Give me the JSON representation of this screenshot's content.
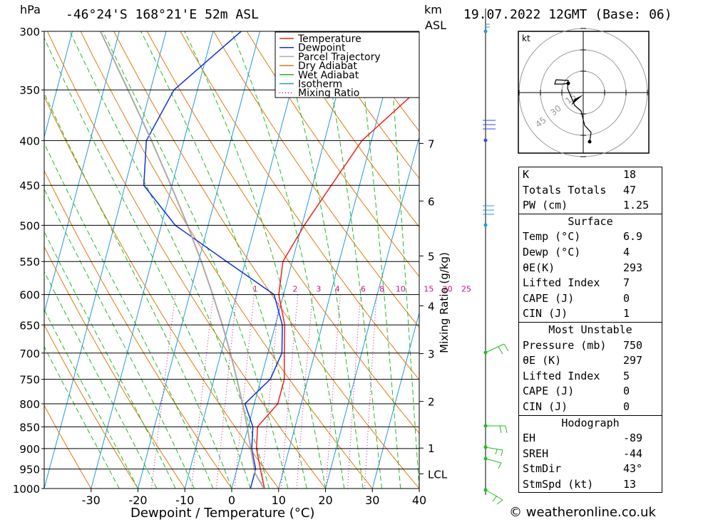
{
  "header": {
    "location": "-46°24'S 168°21'E 52m ASL",
    "datetime": "19.07.2022 12GMT (Base: 06)",
    "pressure_unit": "hPa",
    "height_unit_line1": "km",
    "height_unit_line2": "ASL"
  },
  "footer": {
    "credit": "© weatheronline.co.uk"
  },
  "colors": {
    "temperature": "#ee2222",
    "dewpoint": "#1133dd",
    "parcel": "#aaaaaa",
    "dry_adiabat": "#e07a10",
    "wet_adiabat": "#22bb22",
    "isotherm": "#2299dd",
    "mixing_ratio": "#cc1188",
    "wind_blue": "#3344ff",
    "wind_green": "#22bb22"
  },
  "chart_data": {
    "type": "line",
    "title": "",
    "xlabel": "Dewpoint / Temperature (°C)",
    "ylabel": "hPa",
    "xlim": [
      -40,
      40
    ],
    "ylim": [
      1000,
      300
    ],
    "x_ticks": [
      -30,
      -20,
      -10,
      0,
      10,
      20,
      30,
      40
    ],
    "pressure_levels": [
      300,
      350,
      400,
      450,
      500,
      550,
      600,
      650,
      700,
      750,
      800,
      850,
      900,
      950,
      1000
    ],
    "height_km_ticks": [
      {
        "label": "7",
        "p": 403
      },
      {
        "label": "6",
        "p": 469
      },
      {
        "label": "5",
        "p": 542
      },
      {
        "label": "4",
        "p": 618
      },
      {
        "label": "3",
        "p": 701
      },
      {
        "label": "2",
        "p": 795
      },
      {
        "label": "1",
        "p": 899
      },
      {
        "label": "LCL",
        "p": 962
      }
    ],
    "mixing_ratio_axis_label": "Mixing Ratio (g/kg)",
    "mixing_ratio_labels": [
      {
        "label": "1",
        "x": -6
      },
      {
        "label": "2",
        "x": 2.5
      },
      {
        "label": "3",
        "x": 7.5
      },
      {
        "label": "4",
        "x": 11.5
      },
      {
        "label": "6",
        "x": 17
      },
      {
        "label": "8",
        "x": 21
      },
      {
        "label": "10",
        "x": 25
      },
      {
        "label": "15",
        "x": 31
      },
      {
        "label": "20",
        "x": 35
      },
      {
        "label": "25",
        "x": 39
      }
    ],
    "legend": {
      "position": "top-right",
      "entries": [
        "Temperature",
        "Dewpoint",
        "Parcel Trajectory",
        "Dry Adiabat",
        "Wet Adiabat",
        "Isotherm",
        "Mixing Ratio"
      ]
    },
    "series": [
      {
        "name": "Temperature",
        "points": [
          [
            1000,
            7
          ],
          [
            950,
            5
          ],
          [
            900,
            3
          ],
          [
            850,
            2
          ],
          [
            800,
            5
          ],
          [
            750,
            5
          ],
          [
            700,
            3.5
          ],
          [
            650,
            2
          ],
          [
            600,
            -1
          ],
          [
            550,
            -2
          ],
          [
            500,
            0.5
          ],
          [
            450,
            4
          ],
          [
            400,
            8
          ],
          [
            350,
            17
          ],
          [
            300,
            28
          ]
        ]
      },
      {
        "name": "Dewpoint",
        "points": [
          [
            1000,
            4
          ],
          [
            950,
            4
          ],
          [
            900,
            2
          ],
          [
            850,
            1
          ],
          [
            800,
            -2
          ],
          [
            750,
            2
          ],
          [
            700,
            3
          ],
          [
            650,
            1.5
          ],
          [
            600,
            -2
          ],
          [
            550,
            -14
          ],
          [
            500,
            -27
          ],
          [
            450,
            -36
          ],
          [
            400,
            -38
          ],
          [
            350,
            -35
          ],
          [
            300,
            -24
          ]
        ]
      },
      {
        "name": "Parcel Trajectory",
        "points": [
          [
            1000,
            6.9
          ],
          [
            962,
            4.2
          ],
          [
            900,
            1.8
          ],
          [
            850,
            -0.2
          ],
          [
            800,
            -2.5
          ],
          [
            750,
            -5.1
          ],
          [
            700,
            -8
          ],
          [
            650,
            -11.3
          ],
          [
            600,
            -15.1
          ],
          [
            550,
            -19.4
          ],
          [
            500,
            -24.4
          ],
          [
            450,
            -30.2
          ],
          [
            400,
            -36.9
          ],
          [
            350,
            -44.8
          ],
          [
            300,
            -54
          ]
        ]
      }
    ]
  },
  "hodograph": {
    "unit": "kt",
    "ring_labels": [
      "15",
      "30",
      "45"
    ]
  },
  "wind_profile_km": [
    "0",
    "0.5",
    "1",
    "1.5",
    "3",
    "5",
    "6.5",
    "9"
  ],
  "stats": {
    "rows1": [
      {
        "k": "K",
        "v": "18"
      },
      {
        "k": "Totals Totals",
        "v": "47"
      },
      {
        "k": "PW (cm)",
        "v": "1.25"
      }
    ],
    "surface_title": "Surface",
    "surface": [
      {
        "k": "Temp (°C)",
        "v": "6.9"
      },
      {
        "k": "Dewp (°C)",
        "v": "4"
      },
      {
        "k": "θE(K)",
        "v": "293"
      },
      {
        "k": "Lifted Index",
        "v": "7"
      },
      {
        "k": "CAPE (J)",
        "v": "0"
      },
      {
        "k": "CIN (J)",
        "v": "1"
      }
    ],
    "mu_title": "Most Unstable",
    "mu": [
      {
        "k": "Pressure (mb)",
        "v": "750"
      },
      {
        "k": "θE (K)",
        "v": "297"
      },
      {
        "k": "Lifted Index",
        "v": "5"
      },
      {
        "k": "CAPE (J)",
        "v": "0"
      },
      {
        "k": "CIN (J)",
        "v": "0"
      }
    ],
    "hodo_title": "Hodograph",
    "hodo": [
      {
        "k": "EH",
        "v": "-89"
      },
      {
        "k": "SREH",
        "v": "-44"
      },
      {
        "k": "StmDir",
        "v": "43°"
      },
      {
        "k": "StmSpd (kt)",
        "v": "13"
      }
    ]
  }
}
